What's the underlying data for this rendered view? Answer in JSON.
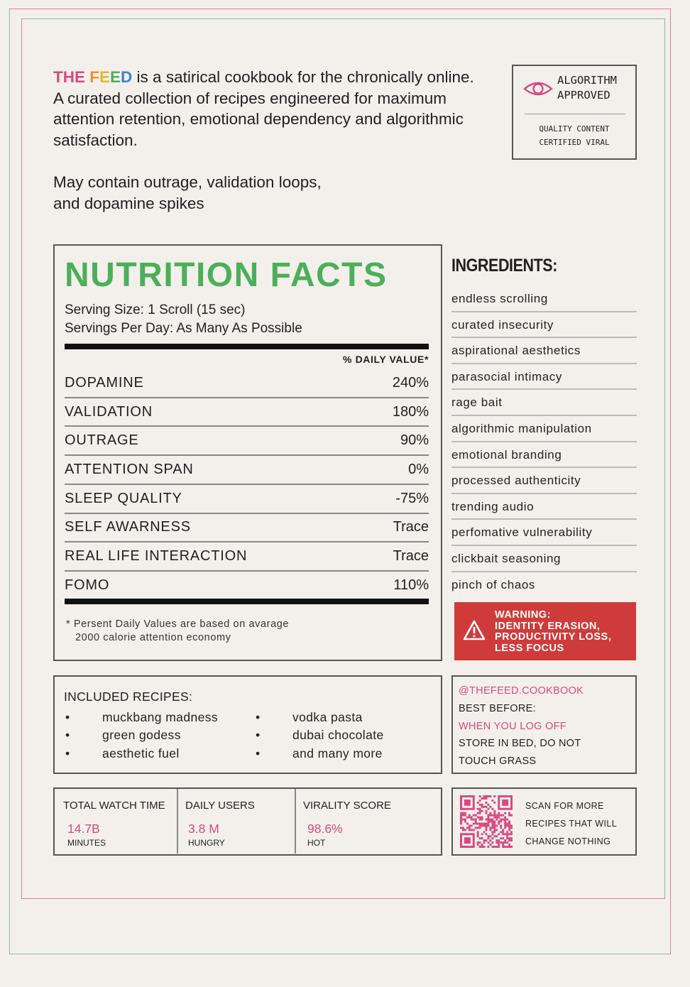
{
  "intro": {
    "brand_the": "THE ",
    "brand_letters": [
      {
        "char": "F",
        "color": "#e8932a"
      },
      {
        "char": "E",
        "color": "#e3b72c"
      },
      {
        "char": "E",
        "color": "#4caf5a"
      },
      {
        "char": "D",
        "color": "#3f7fd0"
      }
    ],
    "brand_the_color": "#d6497f",
    "text1": " is a satirical cookbook for the chronically online. A curated collection of recipes engineered for maximum attention retention, emotional dependency and algorithmic satisfaction.",
    "text2_line1": "May contain outrage, validation loops,",
    "text2_line2": "and dopamine spikes"
  },
  "stamp": {
    "icon": "eye-icon",
    "line1": "ALGORITHM",
    "line2": "APPROVED",
    "sub1": "QUALITY CONTENT",
    "sub2": "CERTIFIED VIRAL"
  },
  "nutrition": {
    "title": "NUTRITION FACTS",
    "serving_size": "Serving Size: 1 Scroll (15 sec)",
    "servings_per_day": "Servings Per Day: As Many As Possible",
    "dv_header": "% DAILY VALUE*",
    "rows": [
      {
        "name": "DOPAMINE",
        "value": "240%"
      },
      {
        "name": "VALIDATION",
        "value": "180%"
      },
      {
        "name": "OUTRAGE",
        "value": "90%"
      },
      {
        "name": "ATTENTION SPAN",
        "value": "0%"
      },
      {
        "name": "SLEEP QUALITY",
        "value": "-75%"
      },
      {
        "name": "SELF AWARNESS",
        "value": "Trace"
      },
      {
        "name": "REAL LIFE INTERACTION",
        "value": "Trace"
      },
      {
        "name": "FOMO",
        "value": "110%"
      }
    ],
    "footnote_line1": "* Persent Daily Values are based on avarage",
    "footnote_line2": "2000 calorie attention economy"
  },
  "ingredients": {
    "title": "INGREDIENTS:",
    "items": [
      "endless scrolling",
      "curated insecurity",
      "aspirational aesthetics",
      "parasocial intimacy",
      "rage bait",
      "algorithmic manipulation",
      "emotional branding",
      "processed authenticity",
      "trending audio",
      "perfomative vulnerability",
      "clickbait seasoning",
      "pinch of chaos"
    ]
  },
  "warning": {
    "icon": "warning-triangle-icon",
    "line1": "WARNING:",
    "line2": "IDENTITY ERASION,",
    "line3": "PRODUCTIVITY LOSS,",
    "line4": "LESS FOCUS",
    "color": "#cf3b3b"
  },
  "recipes": {
    "title": "INCLUDED RECIPES:",
    "bullet": "•",
    "col1": [
      "muckbang madness",
      "green godess",
      "aesthetic fuel"
    ],
    "col2": [
      "vodka pasta",
      "dubai chocolate",
      "and many more"
    ]
  },
  "best_before": {
    "handle": "@THEFEED.COOKBOOK",
    "label": "BEST BEFORE:",
    "value": "WHEN YOU LOG OFF",
    "store_line1": "STORE IN BED, DO NOT",
    "store_line2": "TOUCH GRASS"
  },
  "stats": [
    {
      "label": "TOTAL WATCH TIME",
      "value": "14.7B",
      "unit": "MINUTES"
    },
    {
      "label": "DAILY USERS",
      "value": "3.8 M",
      "unit": "HUNGRY"
    },
    {
      "label": "VIRALITY SCORE",
      "value": "98.6%",
      "unit": "HOT"
    }
  ],
  "qr": {
    "icon": "qr-code-icon",
    "line1": "SCAN FOR MORE",
    "line2": "RECIPES THAT WILL",
    "line3": "CHANGE NOTHING",
    "color": "#d6497f"
  }
}
